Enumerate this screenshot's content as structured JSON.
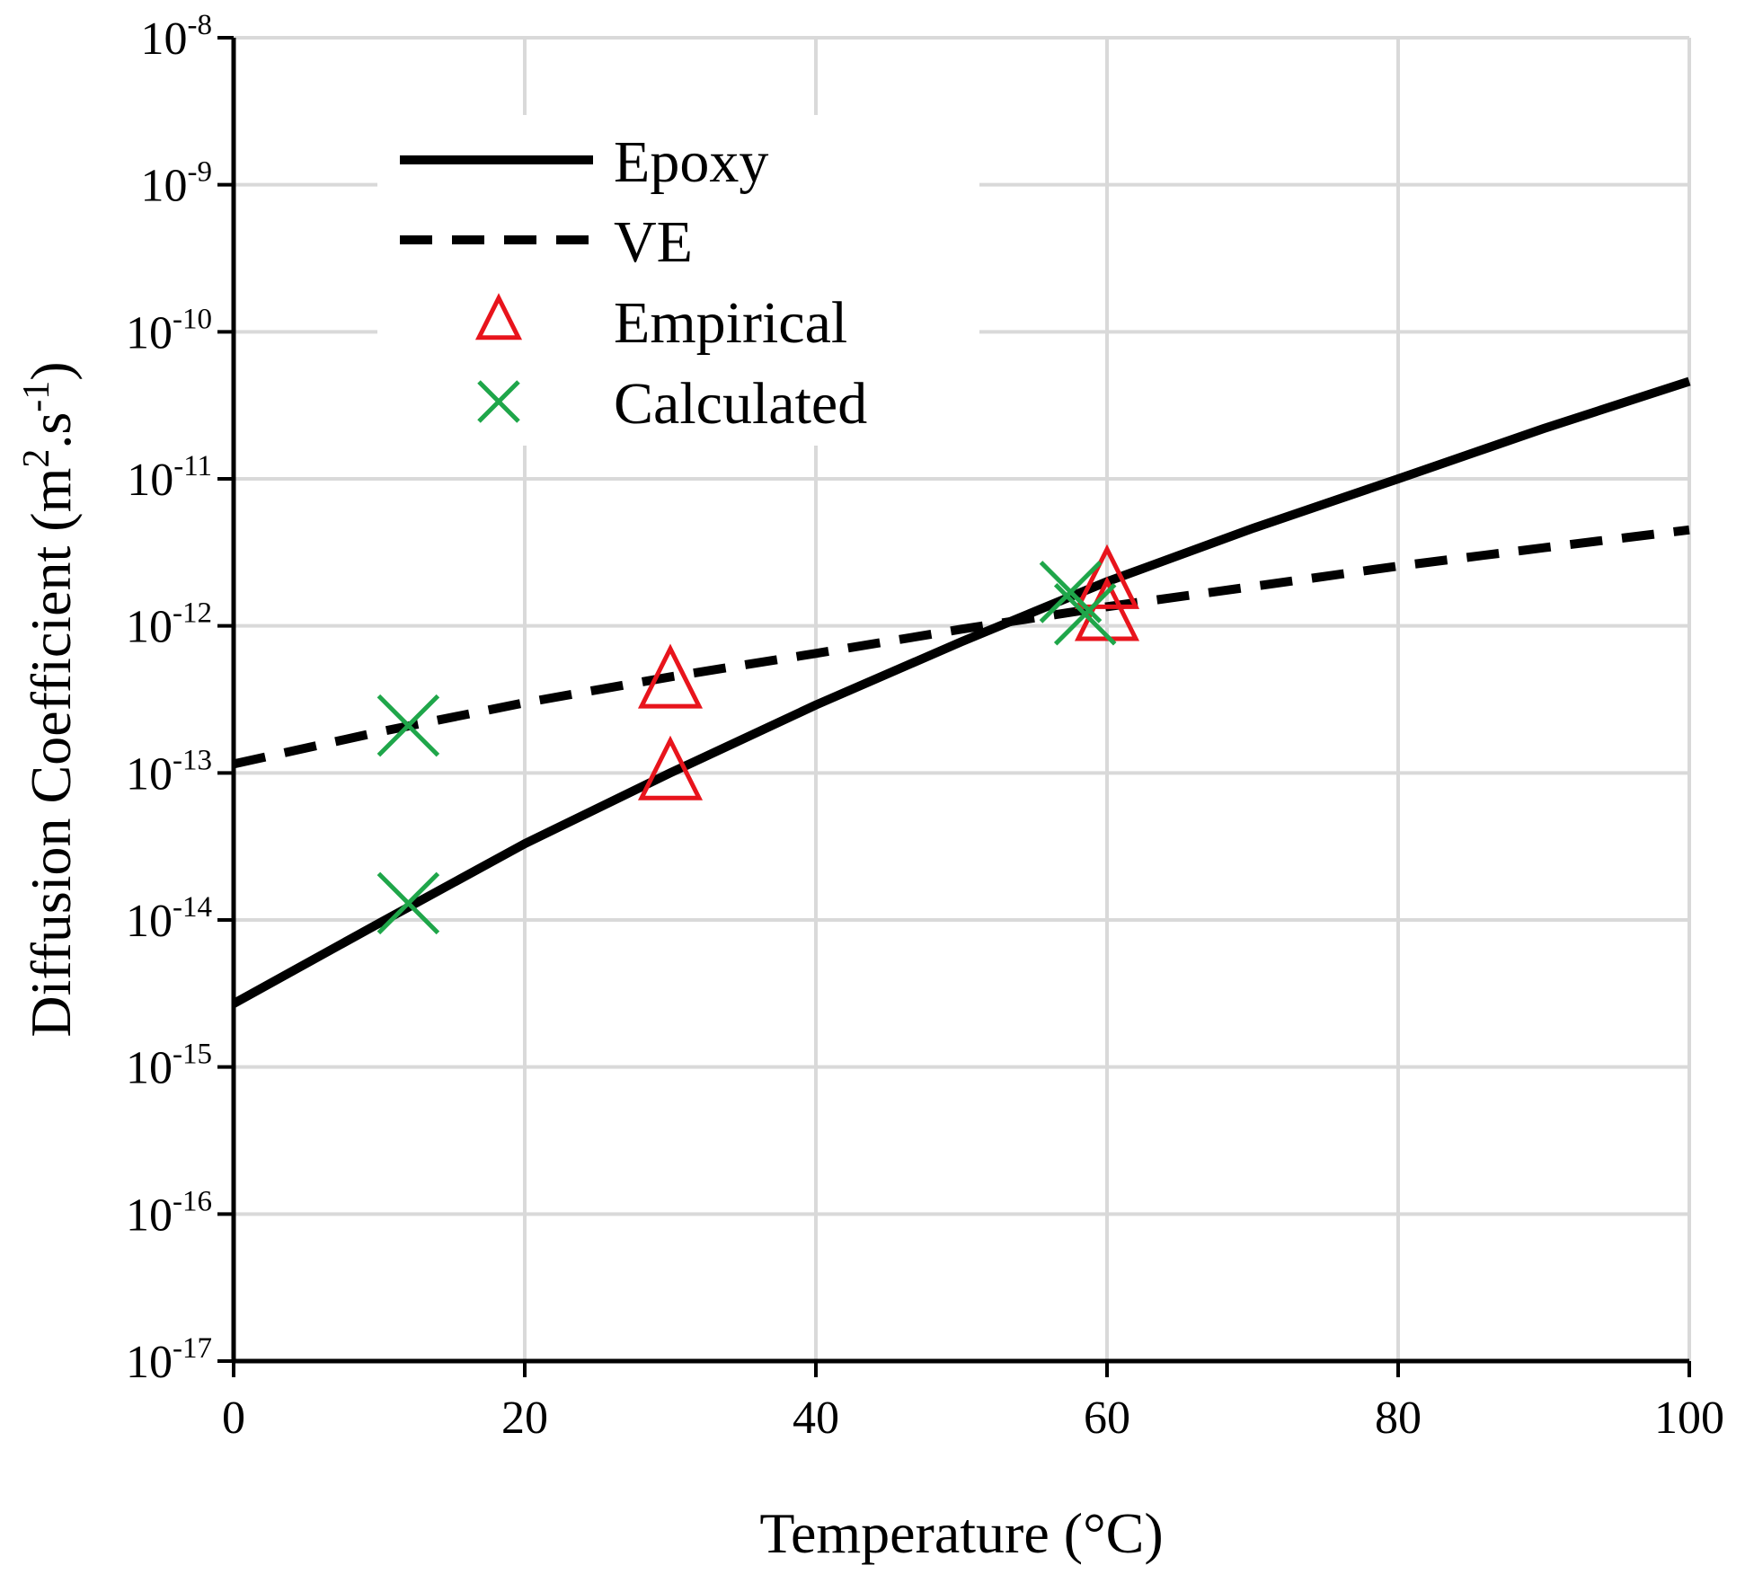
{
  "chart_data": {
    "type": "line",
    "title": "",
    "xlabel": "Temperature (°C)",
    "ylabel": {
      "prefix": "Diffusion Coefficient (m",
      "exp1": "2",
      "middle": ".s",
      "exp2": "-1",
      "suffix": ")"
    },
    "x_range": [
      0,
      100
    ],
    "x_ticks": [
      0,
      20,
      40,
      60,
      80,
      100
    ],
    "x_tick_labels": [
      "0",
      "20",
      "40",
      "60",
      "80",
      "100"
    ],
    "y_scale": "log",
    "y_range": [
      1e-17,
      1e-08
    ],
    "y_ticks": [
      {
        "base": "10",
        "exp": "-17",
        "value": 1e-17
      },
      {
        "base": "10",
        "exp": "-16",
        "value": 1e-16
      },
      {
        "base": "10",
        "exp": "-15",
        "value": 1e-15
      },
      {
        "base": "10",
        "exp": "-14",
        "value": 1e-14
      },
      {
        "base": "10",
        "exp": "-13",
        "value": 1e-13
      },
      {
        "base": "10",
        "exp": "-12",
        "value": 1e-12
      },
      {
        "base": "10",
        "exp": "-11",
        "value": 1e-11
      },
      {
        "base": "10",
        "exp": "-10",
        "value": 1e-10
      },
      {
        "base": "10",
        "exp": "-9",
        "value": 1e-09
      },
      {
        "base": "10",
        "exp": "-8",
        "value": 1e-08
      }
    ],
    "grid": true,
    "legend_position": "top-left",
    "series": [
      {
        "name": "Epoxy",
        "style": "solid-line",
        "color": "#000000",
        "x": [
          0,
          10,
          20,
          30,
          40,
          50,
          60,
          70,
          80,
          90,
          100
        ],
        "y": [
          2.7e-15,
          9.5e-15,
          3.3e-14,
          1e-13,
          2.9e-13,
          7.8e-13,
          2e-12,
          4.6e-12,
          1e-11,
          2.2e-11,
          4.6e-11
        ]
      },
      {
        "name": "VE",
        "style": "dashed-line",
        "color": "#000000",
        "x": [
          0,
          10,
          20,
          30,
          40,
          50,
          60,
          70,
          80,
          90,
          100
        ],
        "y": [
          1.15e-13,
          1.9e-13,
          3e-13,
          4.5e-13,
          6.5e-13,
          9.5e-13,
          1.35e-12,
          1.85e-12,
          2.55e-12,
          3.4e-12,
          4.5e-12
        ]
      },
      {
        "name": "Empirical",
        "style": "triangle-marker",
        "color": "#e8141c",
        "x": [
          30,
          30,
          60,
          60
        ],
        "y": [
          4e-13,
          9.5e-14,
          1.9e-12,
          1.15e-12
        ]
      },
      {
        "name": "Calculated",
        "style": "x-marker",
        "color": "#1fa64a",
        "x": [
          12,
          12,
          57.5,
          58.5
        ],
        "y": [
          2.1e-13,
          1.3e-14,
          1.7e-12,
          1.2e-12
        ]
      }
    ]
  }
}
